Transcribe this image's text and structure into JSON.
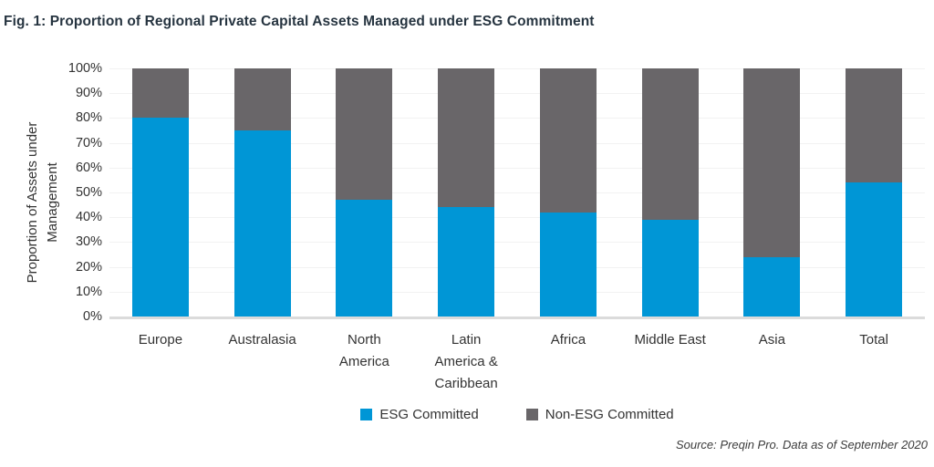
{
  "figure": {
    "title": "Fig. 1: Proportion of Regional Private Capital Assets Managed under ESG Commitment",
    "source": "Source: Preqin Pro. Data as of September 2020"
  },
  "chart_data": {
    "type": "bar",
    "stacked": true,
    "orientation": "vertical",
    "title": "Fig. 1: Proportion of Regional Private Capital Assets Managed under ESG Commitment",
    "ylabel": "Proportion of Assets under Management",
    "ylabel_lines": [
      "Proportion of Assets under",
      "Management"
    ],
    "xlabel": "",
    "categories": [
      "Europe",
      "Australasia",
      "North America",
      "Latin America & Caribbean",
      "Africa",
      "Middle East",
      "Asia",
      "Total"
    ],
    "series": [
      {
        "name": "ESG Committed",
        "color": "#0096D6",
        "values": [
          80,
          75,
          47,
          44,
          42,
          39,
          24,
          54
        ]
      },
      {
        "name": "Non-ESG Committed",
        "color": "#696669",
        "values": [
          20,
          25,
          53,
          56,
          58,
          61,
          76,
          46
        ]
      }
    ],
    "ylim": [
      0,
      100
    ],
    "ytick_step": 10,
    "ytick_suffix": "%",
    "grid": "horizontal",
    "gridline_color": "#F2F2F2",
    "axis_line_color": "#DBDBDB",
    "legend_position": "bottom",
    "source": "Source: Preqin Pro. Data as of September 2020"
  }
}
